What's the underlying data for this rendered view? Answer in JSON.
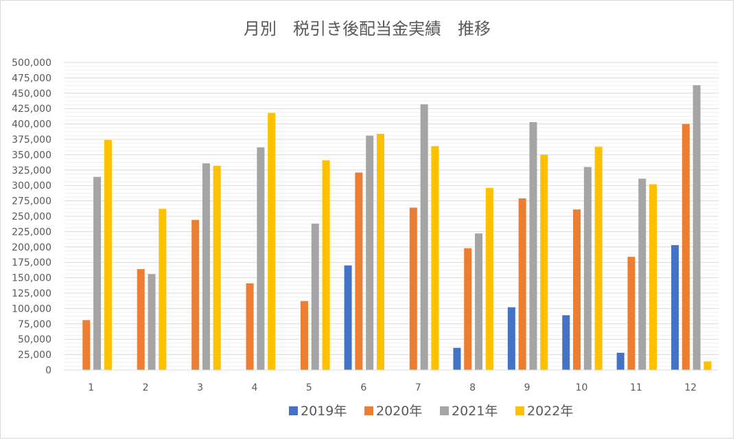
{
  "chart_data": {
    "type": "bar",
    "title": "月別　税引き後配当金実績　推移",
    "xlabel": "",
    "ylabel": "",
    "categories": [
      "1",
      "2",
      "3",
      "4",
      "5",
      "6",
      "7",
      "8",
      "9",
      "10",
      "11",
      "12"
    ],
    "ylim": [
      0,
      500000
    ],
    "yticks": [
      0,
      25000,
      50000,
      75000,
      100000,
      125000,
      150000,
      175000,
      200000,
      225000,
      250000,
      275000,
      300000,
      325000,
      350000,
      375000,
      400000,
      425000,
      450000,
      475000,
      500000
    ],
    "ytick_labels": [
      "0",
      "25,000",
      "50,000",
      "75,000",
      "100,000",
      "125,000",
      "150,000",
      "175,000",
      "200,000",
      "225,000",
      "250,000",
      "275,000",
      "300,000",
      "325,000",
      "350,000",
      "375,000",
      "400,000",
      "425,000",
      "450,000",
      "475,000",
      "500,000"
    ],
    "grid": true,
    "legend_position": "bottom",
    "series": [
      {
        "name": "2019年",
        "color": "#4472C4",
        "values": [
          0,
          0,
          0,
          0,
          0,
          170000,
          0,
          36000,
          102000,
          89000,
          28000,
          203000
        ]
      },
      {
        "name": "2020年",
        "color": "#ED7D31",
        "values": [
          81000,
          164000,
          244000,
          141000,
          112000,
          321000,
          264000,
          198000,
          279000,
          261000,
          184000,
          400000
        ]
      },
      {
        "name": "2021年",
        "color": "#A5A5A5",
        "values": [
          314000,
          156000,
          336000,
          362000,
          238000,
          381000,
          432000,
          222000,
          403000,
          330000,
          311000,
          463000
        ]
      },
      {
        "name": "2022年",
        "color": "#FFC000",
        "values": [
          374000,
          262000,
          332000,
          418000,
          341000,
          384000,
          364000,
          296000,
          350000,
          363000,
          302000,
          14000
        ]
      }
    ]
  }
}
